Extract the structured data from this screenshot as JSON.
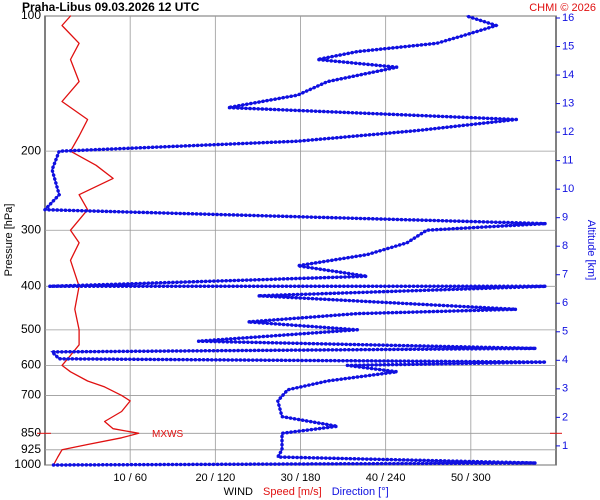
{
  "chart_data": {
    "type": "profile",
    "title": "Praha-Libus    09.03.2026 12 UTC",
    "credit": "CHMI © 2026",
    "ylabel": "Pressure [hPa]",
    "y2label": "Altitude [km]",
    "xlabel": "WIND",
    "annotation": {
      "text": "MXWS",
      "pressure": 850
    },
    "ylim": [
      1000,
      100
    ],
    "log_y": true,
    "yticks": [
      100,
      200,
      300,
      400,
      500,
      600,
      700,
      850,
      925,
      1000
    ],
    "y2lim": [
      0.33,
      16.07
    ],
    "y2ticks": [
      1,
      2,
      3,
      4,
      5,
      6,
      7,
      8,
      9,
      10,
      11,
      12,
      13,
      14,
      15,
      16
    ],
    "xlim": [
      0,
      60
    ],
    "x2lim": [
      0,
      360
    ],
    "xticks": [
      {
        "value": 10,
        "label": "10 / 60"
      },
      {
        "value": 20,
        "label": "20 / 120"
      },
      {
        "value": 30,
        "label": "30 / 180"
      },
      {
        "value": 40,
        "label": "40 / 240"
      },
      {
        "value": 50,
        "label": "50 / 300"
      }
    ],
    "grid": true,
    "series": [
      {
        "name": "Speed [m/s]",
        "color": "#e01010",
        "y": [
          1000,
          960,
          925,
          900,
          870,
          850,
          830,
          800,
          760,
          720,
          700,
          670,
          650,
          620,
          600,
          570,
          540,
          500,
          450,
          400,
          350,
          320,
          300,
          270,
          250,
          230,
          215,
          200,
          185,
          170,
          155,
          140,
          125,
          115,
          105,
          100
        ],
        "x": [
          1,
          1.5,
          2,
          5,
          9,
          11,
          8,
          7,
          9,
          10,
          9,
          7,
          5,
          3,
          2,
          3,
          4,
          4,
          3.5,
          4,
          3,
          4,
          3,
          5,
          4,
          8,
          6,
          3,
          4,
          5,
          2,
          4,
          3,
          4,
          2,
          3
        ]
      },
      {
        "name": "Direction [°]",
        "color": "#1010e0",
        "axis": "x2",
        "y": [
          1000,
          990,
          960,
          925,
          850,
          820,
          780,
          720,
          680,
          650,
          620,
          600,
          590,
          580,
          560,
          550,
          530,
          500,
          480,
          460,
          450,
          420,
          400,
          400,
          380,
          360,
          340,
          320,
          300,
          290,
          270,
          250,
          220,
          200,
          190,
          180,
          170,
          160,
          150,
          140,
          130,
          125,
          120,
          115,
          110,
          105,
          100
        ],
        "x": [
          6,
          346,
          164,
          167,
          167,
          206,
          167,
          164,
          171,
          199,
          248,
          213,
          353,
          10,
          5,
          346,
          108,
          220,
          143,
          220,
          332,
          150,
          353,
          3,
          227,
          178,
          227,
          255,
          269,
          353,
          0,
          10,
          5,
          10,
          178,
          262,
          332,
          129,
          178,
          199,
          248,
          192,
          220,
          276,
          297,
          318,
          297
        ]
      }
    ]
  }
}
